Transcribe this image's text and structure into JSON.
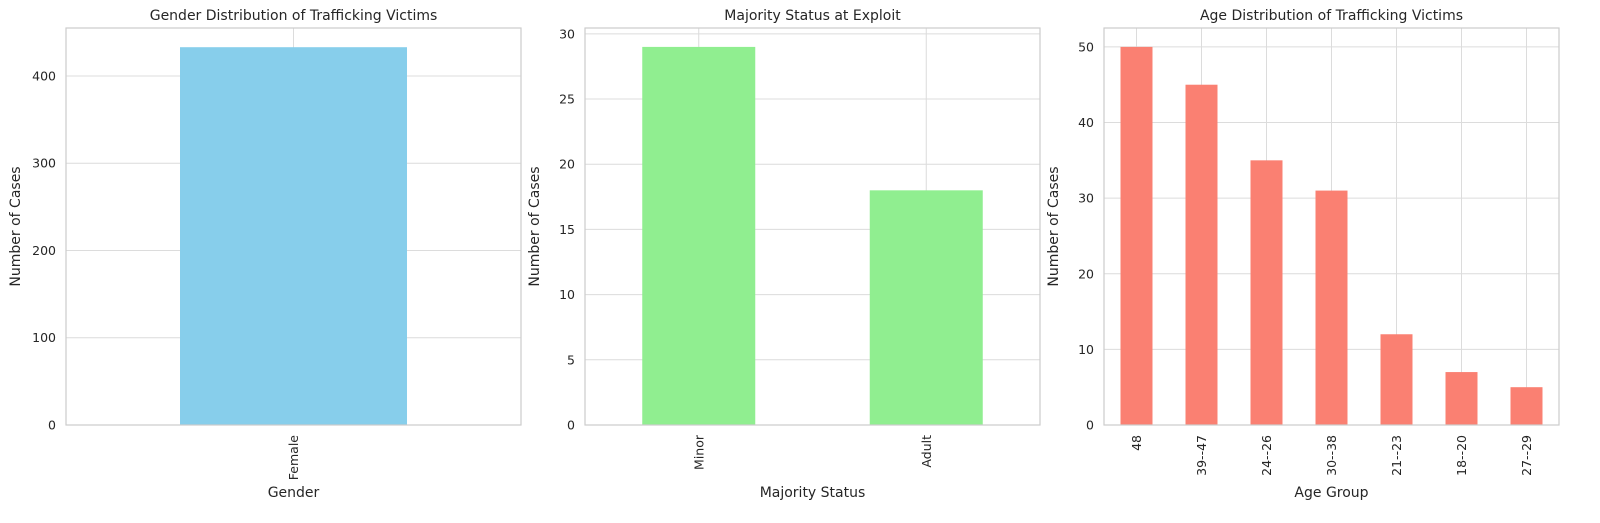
{
  "chart_data": [
    {
      "type": "bar",
      "title": "Gender Distribution of Trafficking Victims",
      "xlabel": "Gender",
      "ylabel": "Number of Cases",
      "categories": [
        "Female"
      ],
      "values": [
        433
      ],
      "ylim": [
        0,
        455
      ],
      "yticks": [
        0,
        100,
        200,
        300,
        400
      ],
      "color": "#87ceeb",
      "grid": true
    },
    {
      "type": "bar",
      "title": "Majority Status at Exploit",
      "xlabel": "Majority Status",
      "ylabel": "Number of Cases",
      "categories": [
        "Minor",
        "Adult"
      ],
      "values": [
        29,
        18
      ],
      "ylim": [
        0,
        30.45
      ],
      "yticks": [
        0,
        5,
        10,
        15,
        20,
        25,
        30
      ],
      "color": "#90ee90",
      "grid": true
    },
    {
      "type": "bar",
      "title": "Age Distribution of Trafficking Victims",
      "xlabel": "Age Group",
      "ylabel": "Number of Cases",
      "categories": [
        "48",
        "39--47",
        "24--26",
        "30--38",
        "21--23",
        "18--20",
        "27--29"
      ],
      "values": [
        50,
        45,
        35,
        31,
        12,
        7,
        5
      ],
      "ylim": [
        0,
        52.5
      ],
      "yticks": [
        0,
        10,
        20,
        30,
        40,
        50
      ],
      "color": "#fa8072",
      "grid": true
    }
  ]
}
